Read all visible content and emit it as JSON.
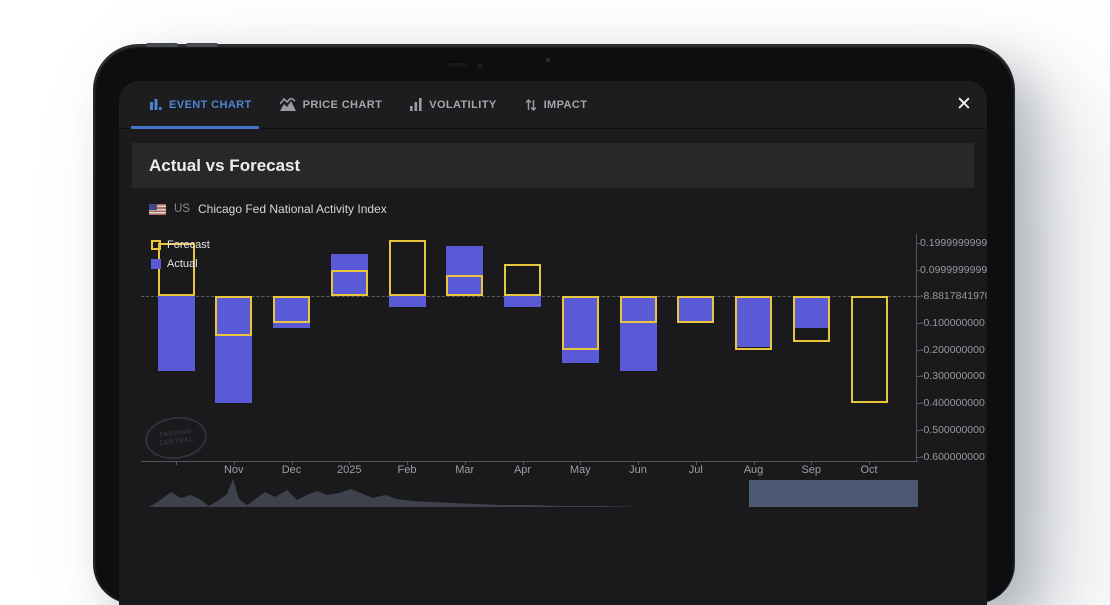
{
  "tab_bar": {
    "tabs": [
      {
        "label": "EVENT CHART",
        "icon": "bar-chart-icon",
        "active": true
      },
      {
        "label": "PRICE CHART",
        "icon": "price-mountain-icon",
        "active": false
      },
      {
        "label": "VOLATILITY",
        "icon": "ascending-bars-icon",
        "active": false
      },
      {
        "label": "IMPACT",
        "icon": "up-down-arrows-icon",
        "active": false
      }
    ],
    "close_glyph": "✕"
  },
  "header": {
    "title": "Actual vs Forecast"
  },
  "instrument": {
    "country_code": "US",
    "name": "Chicago Fed National Activity Index"
  },
  "watermark": {
    "line1": "TRADING",
    "line2": "CENTRAL"
  },
  "colors": {
    "accent_blue": "#4d86d0",
    "actual_purple": "#5b5ad6",
    "forecast_yellow": "#e8c43f",
    "axis_text": "#97989c",
    "range_handle_blue": "#4a5872",
    "preview_silhouette": "#3e424c"
  },
  "chart_data": {
    "type": "bar",
    "title": "Actual vs Forecast",
    "categories": [
      "",
      "Nov",
      "Dec",
      "2025",
      "Feb",
      "Mar",
      "Apr",
      "May",
      "Jun",
      "Jul",
      "Aug",
      "Sep",
      "Oct"
    ],
    "series": [
      {
        "name": "Forecast",
        "style": "outline",
        "color": "#e8c43f",
        "values": [
          0.2,
          -0.15,
          -0.1,
          0.1,
          0.21,
          0.08,
          0.12,
          -0.2,
          -0.1,
          -0.1,
          -0.2,
          -0.17,
          -0.4
        ]
      },
      {
        "name": "Actual",
        "style": "fill",
        "color": "#5b5ad6",
        "values": [
          -0.28,
          -0.4,
          -0.12,
          0.16,
          -0.04,
          0.19,
          -0.04,
          -0.25,
          -0.28,
          -0.1,
          -0.19,
          -0.12,
          null
        ]
      }
    ],
    "y_axis": {
      "position": "right",
      "ylim": [
        -0.62,
        0.23
      ],
      "ticks": [
        {
          "label": "0.1999999999",
          "value": 0.2
        },
        {
          "label": "0.0999999999",
          "value": 0.1
        },
        {
          "label": "-8.8817841970",
          "value": 0
        },
        {
          "label": "-0.100000000",
          "value": -0.1
        },
        {
          "label": "-0.200000000",
          "value": -0.2
        },
        {
          "label": "-0.300000000",
          "value": -0.3
        },
        {
          "label": "-0.400000000",
          "value": -0.4
        },
        {
          "label": "-0.500000000",
          "value": -0.5
        },
        {
          "label": "-0.600000000",
          "value": -0.6
        }
      ]
    },
    "zero_line": true,
    "legend": [
      "Forecast",
      "Actual"
    ],
    "legend_position": "top-left"
  }
}
